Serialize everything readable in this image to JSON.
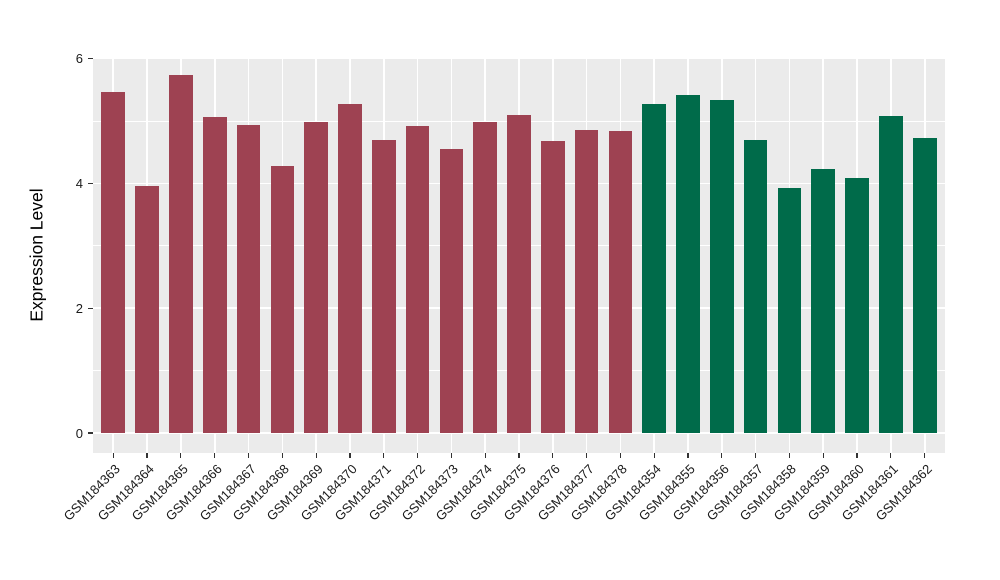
{
  "figure": {
    "background": "#ffffff"
  },
  "chart_data": {
    "type": "bar",
    "title": "",
    "xlabel": "",
    "ylabel": "Expression Level",
    "ylim": [
      0,
      6
    ],
    "yticks": [
      0,
      2,
      4,
      6
    ],
    "yticks_minor": [
      1,
      3,
      5
    ],
    "grid": "on",
    "legend": "none",
    "panel_background": "#ebebeb",
    "gridline_color": "#ffffff",
    "axis_text_color": "#1a1a1a",
    "tick_color": "#333333",
    "x_label_angle_deg": 45,
    "bar_width_fraction": 0.7,
    "series": [
      {
        "name": "group-red",
        "color": "#9e4252",
        "categories": [
          "GSM184363",
          "GSM184364",
          "GSM184365",
          "GSM184366",
          "GSM184367",
          "GSM184368",
          "GSM184369",
          "GSM184370",
          "GSM184371",
          "GSM184372",
          "GSM184373",
          "GSM184374",
          "GSM184375",
          "GSM184376",
          "GSM184377",
          "GSM184378"
        ],
        "values": [
          5.47,
          3.96,
          5.74,
          5.06,
          4.93,
          4.28,
          4.98,
          5.28,
          4.7,
          4.92,
          4.55,
          4.98,
          5.09,
          4.68,
          4.86,
          4.84
        ]
      },
      {
        "name": "group-green",
        "color": "#006b4a",
        "categories": [
          "GSM184354",
          "GSM184355",
          "GSM184356",
          "GSM184357",
          "GSM184358",
          "GSM184359",
          "GSM184360",
          "GSM184361",
          "GSM184362"
        ],
        "values": [
          5.27,
          5.42,
          5.33,
          4.7,
          3.92,
          4.23,
          4.08,
          5.08,
          4.73
        ]
      }
    ]
  }
}
